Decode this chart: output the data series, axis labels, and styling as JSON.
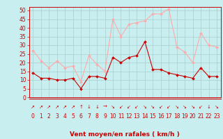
{
  "hours": [
    0,
    1,
    2,
    3,
    4,
    5,
    6,
    7,
    8,
    9,
    10,
    11,
    12,
    13,
    14,
    15,
    16,
    17,
    18,
    19,
    20,
    21,
    22,
    23
  ],
  "wind_avg": [
    14,
    11,
    11,
    10,
    10,
    11,
    5,
    12,
    12,
    11,
    23,
    20,
    23,
    24,
    32,
    16,
    16,
    14,
    13,
    12,
    11,
    17,
    12,
    12
  ],
  "wind_gust": [
    27,
    21,
    17,
    21,
    17,
    18,
    9,
    24,
    19,
    15,
    45,
    35,
    42,
    43,
    44,
    48,
    48,
    51,
    29,
    26,
    20,
    37,
    30,
    29
  ],
  "arrows": [
    "↗",
    "↗",
    "↗",
    "↗",
    "↗",
    "↗",
    "↑",
    "↓",
    "↓",
    "→",
    "↘",
    "↙",
    "↙",
    "↙",
    "↘",
    "↘",
    "↙",
    "↙",
    "↘",
    "↘",
    "↘",
    "↙",
    "↓",
    "↘"
  ],
  "bg_color": "#c8eef0",
  "grid_color": "#aacccc",
  "line_avg_color": "#cc0000",
  "line_gust_color": "#ffaaaa",
  "marker_avg_color": "#cc0000",
  "marker_gust_color": "#ffaaaa",
  "xlabel": "Vent moyen/en rafales ( km/h )",
  "ylim": [
    0,
    52
  ],
  "yticks": [
    0,
    5,
    10,
    15,
    20,
    25,
    30,
    35,
    40,
    45,
    50
  ],
  "tick_color": "#cc0000",
  "xlabel_color": "#cc0000",
  "spine_color": "#cc0000",
  "axis_label_fontsize": 6.5,
  "tick_fontsize": 5.5,
  "arrow_fontsize": 5.0
}
